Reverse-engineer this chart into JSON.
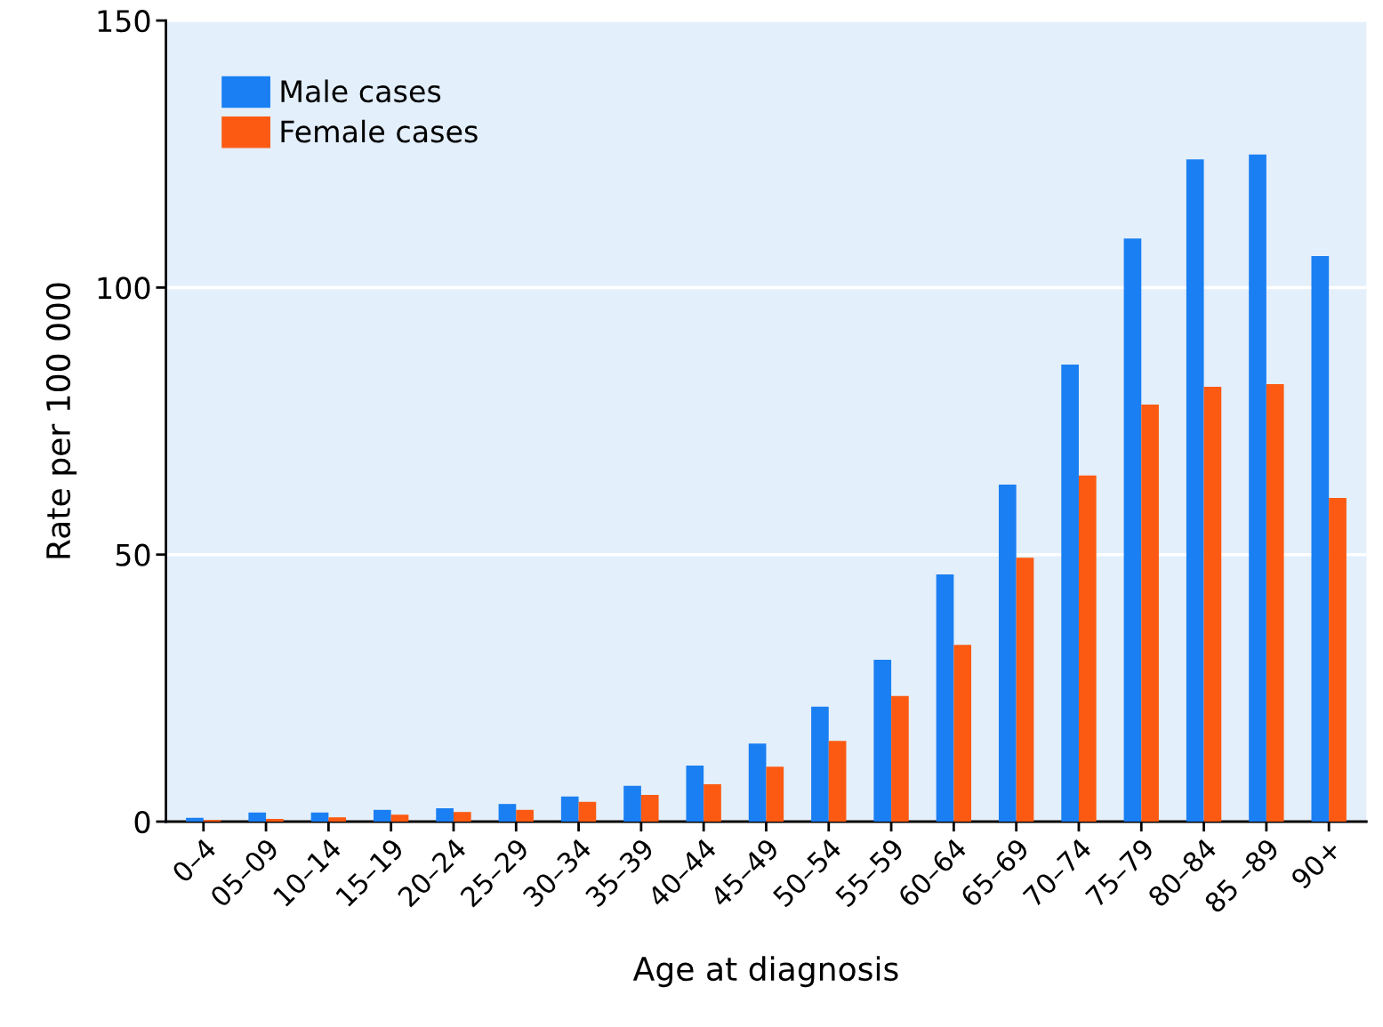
{
  "chart_data": {
    "type": "bar",
    "xlabel": "Age at diagnosis",
    "ylabel": "Rate per 100 000",
    "categories": [
      "0–4",
      "05–09",
      "10–14",
      "15–19",
      "20–24",
      "25–29",
      "30–34",
      "35–39",
      "40–44",
      "45–49",
      "50–54",
      "55–59",
      "60–64",
      "65–69",
      "70–74",
      "75–79",
      "80–84",
      "85 –89",
      "90+"
    ],
    "series": [
      {
        "name": "Male cases",
        "color": "#1a7ff2",
        "values": [
          0.7,
          1.7,
          1.7,
          2.2,
          2.5,
          3.3,
          4.7,
          6.7,
          10.5,
          14.6,
          21.5,
          30.3,
          46.3,
          63.1,
          85.6,
          109.2,
          124.0,
          124.9,
          105.9
        ]
      },
      {
        "name": "Female cases",
        "color": "#fc5a12",
        "values": [
          0.3,
          0.5,
          0.8,
          1.3,
          1.8,
          2.2,
          3.7,
          5.0,
          7.0,
          10.3,
          15.1,
          23.5,
          33.1,
          49.4,
          64.8,
          78.1,
          81.4,
          81.9,
          60.6
        ]
      }
    ],
    "ylim": [
      0,
      150
    ],
    "yticks": [
      0,
      50,
      100,
      150
    ],
    "grid": "y",
    "legend": "top left"
  }
}
